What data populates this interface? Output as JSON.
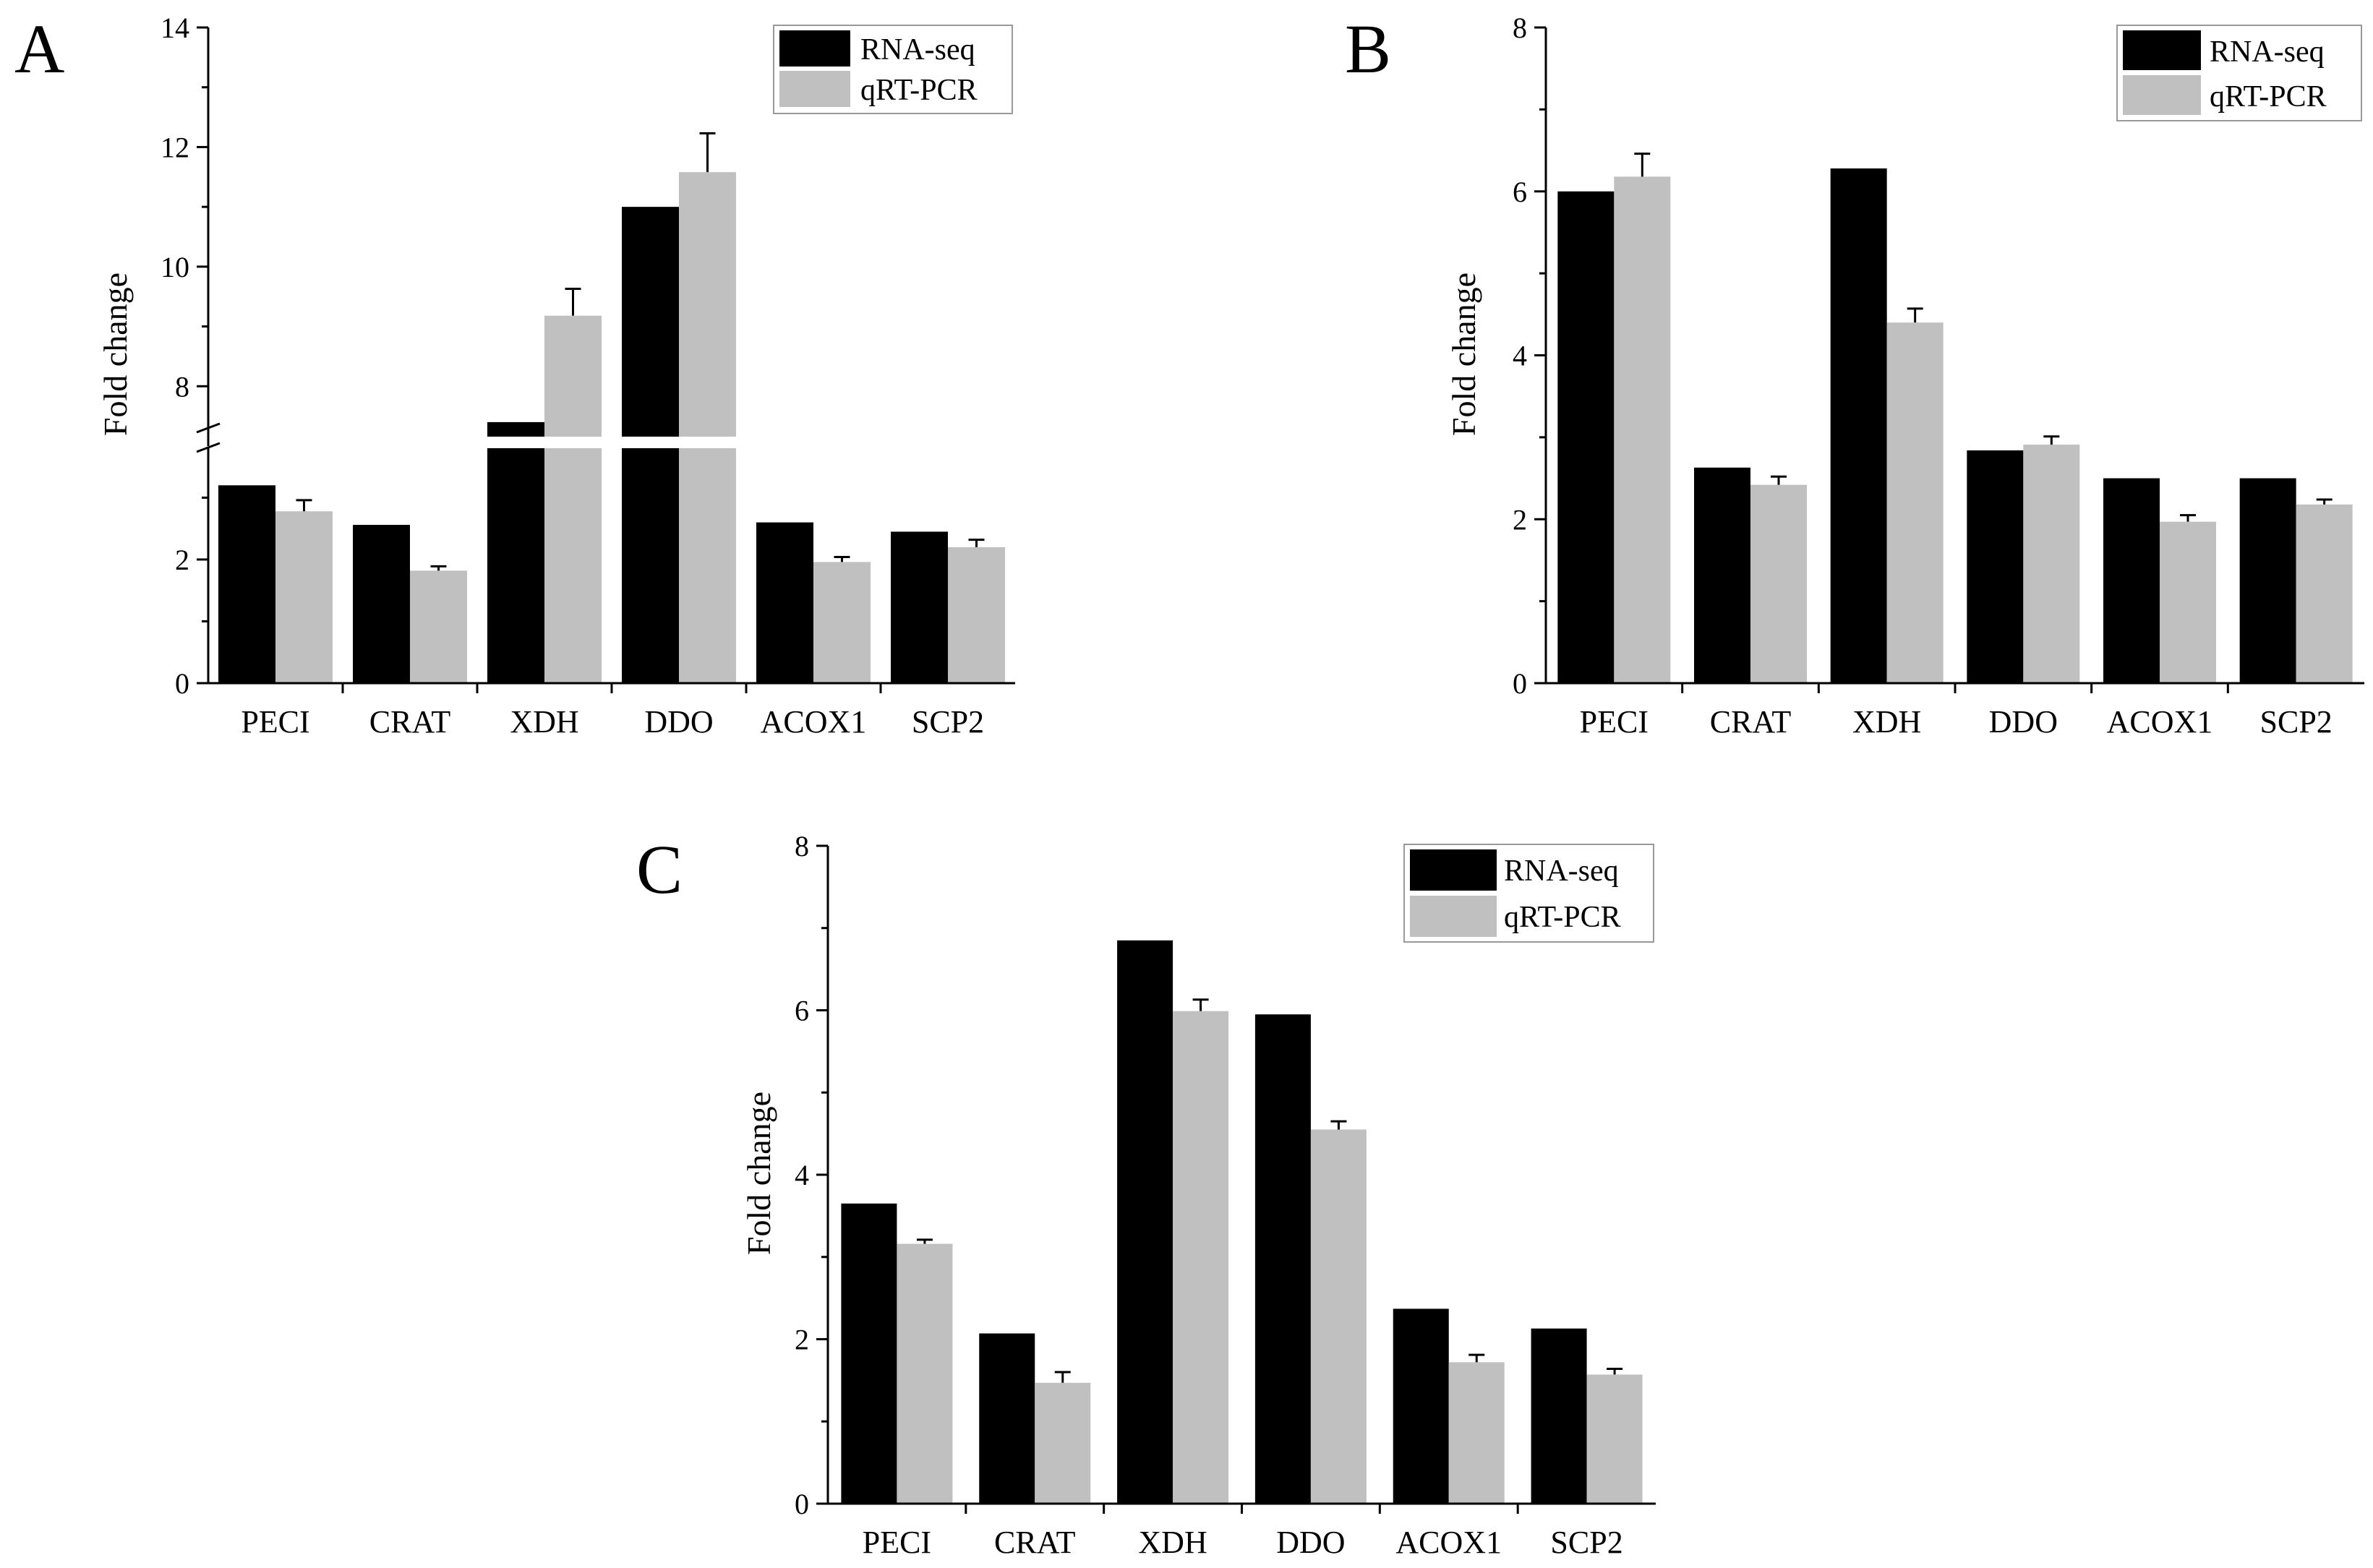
{
  "figure": {
    "colors": {
      "rna": "#000000",
      "qpcr": "#c0c0c0",
      "axis": "#000000",
      "legend_border": "#999999"
    }
  },
  "chart_data": [
    {
      "type": "bar",
      "panel": "A",
      "ylabel": "Fold change",
      "categories": [
        "PECI",
        "CRAT",
        "XDH",
        "DDO",
        "ACOX1",
        "SCP2"
      ],
      "series": [
        {
          "name": "RNA-seq",
          "values": [
            3.2,
            2.56,
            7.4,
            11.0,
            2.6,
            2.45
          ],
          "errors": [
            0,
            0,
            0,
            0,
            0,
            0
          ]
        },
        {
          "name": "qRT-PCR",
          "values": [
            2.78,
            1.82,
            9.18,
            11.58,
            1.96,
            2.2
          ],
          "errors": [
            0.18,
            0.07,
            0.45,
            0.65,
            0.08,
            0.12
          ]
        }
      ],
      "y_axis_break": true,
      "lower_range": [
        0,
        3.8
      ],
      "upper_range": [
        7,
        14
      ],
      "lower_ticks": [
        "0",
        "2"
      ],
      "upper_ticks": [
        "8",
        "10",
        "12",
        "14"
      ],
      "legend_position": "top-right"
    },
    {
      "type": "bar",
      "panel": "B",
      "ylabel": "Fold change",
      "categories": [
        "PECI",
        "CRAT",
        "XDH",
        "DDO",
        "ACOX1",
        "SCP2"
      ],
      "series": [
        {
          "name": "RNA-seq",
          "values": [
            6.0,
            2.63,
            6.28,
            2.84,
            2.5,
            2.5
          ],
          "errors": [
            0,
            0,
            0,
            0,
            0,
            0
          ]
        },
        {
          "name": "qRT-PCR",
          "values": [
            6.18,
            2.42,
            4.4,
            2.91,
            1.97,
            2.18
          ],
          "errors": [
            0.28,
            0.1,
            0.17,
            0.1,
            0.08,
            0.06
          ]
        }
      ],
      "ylim": [
        0,
        8
      ],
      "yticks": [
        "0",
        "2",
        "4",
        "6",
        "8"
      ],
      "legend_position": "top-right"
    },
    {
      "type": "bar",
      "panel": "C",
      "ylabel": "Fold change",
      "categories": [
        "PECI",
        "CRAT",
        "XDH",
        "DDO",
        "ACOX1",
        "SCP2"
      ],
      "series": [
        {
          "name": "RNA-seq",
          "values": [
            3.65,
            2.07,
            6.85,
            5.95,
            2.37,
            2.13
          ],
          "errors": [
            0,
            0,
            0,
            0,
            0,
            0
          ]
        },
        {
          "name": "qRT-PCR",
          "values": [
            3.16,
            1.47,
            5.99,
            4.55,
            1.72,
            1.57
          ],
          "errors": [
            0.05,
            0.13,
            0.14,
            0.1,
            0.09,
            0.07
          ]
        }
      ],
      "ylim": [
        0,
        8
      ],
      "yticks": [
        "0",
        "2",
        "4",
        "6",
        "8"
      ],
      "legend_position": "top-right"
    }
  ]
}
